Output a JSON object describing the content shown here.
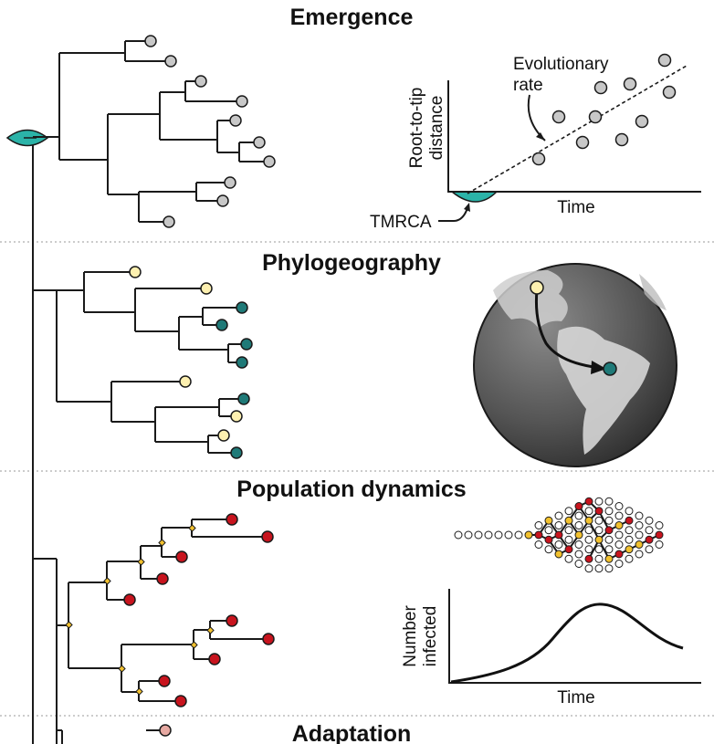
{
  "sections": {
    "emergence": "Emergence",
    "phylogeography": "Phylogeography",
    "population_dynamics": "Population dynamics",
    "adaptation": "Adaptation"
  },
  "emergence_plot": {
    "y_label_line1": "Root-to-tip",
    "y_label_line2": "distance",
    "x_label": "Time",
    "rate_label_line1": "Evolutionary",
    "rate_label_line2": "rate",
    "tmrca_label": "TMRCA"
  },
  "dynamics_plot": {
    "y_label_line1": "Number",
    "y_label_line2": "infected",
    "x_label": "Time"
  },
  "colors": {
    "teal": "#2bb3a8",
    "grey_tip": "#c8c8c8",
    "cream_tip": "#fdf0b0",
    "dark_teal_tip": "#1f7a78",
    "red_tip": "#c8141e",
    "yellow_node": "#f2c12e",
    "pink_tip": "#e7a9a2"
  }
}
